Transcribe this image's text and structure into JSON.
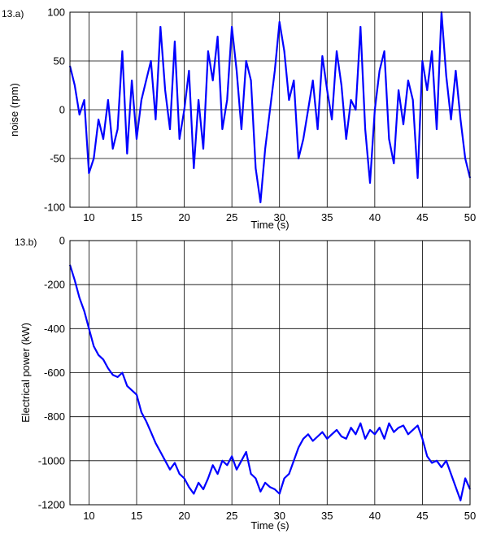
{
  "figure": {
    "background": "#ffffff",
    "line_color": "#0000ff",
    "axis_color": "#000000"
  },
  "chart_data": [
    {
      "type": "line",
      "panel_label": "13.a)",
      "xlabel": "Time (s)",
      "ylabel": "noise (rpm)",
      "xlim": [
        8,
        50
      ],
      "ylim": [
        -100,
        100
      ],
      "xticks": [
        10,
        15,
        20,
        25,
        30,
        35,
        40,
        45,
        50
      ],
      "yticks": [
        -100,
        -50,
        0,
        50,
        100
      ],
      "grid": true,
      "series": [
        {
          "color": "#0000ff",
          "x": [
            8,
            8.5,
            9,
            9.5,
            10,
            10.5,
            11,
            11.5,
            12,
            12.5,
            13,
            13.5,
            14,
            14.5,
            15,
            15.5,
            16,
            16.5,
            17,
            17.5,
            18,
            18.5,
            19,
            19.5,
            20,
            20.5,
            21,
            21.5,
            22,
            22.5,
            23,
            23.5,
            24,
            24.5,
            25,
            25.5,
            26,
            26.5,
            27,
            27.5,
            28,
            28.5,
            29,
            29.5,
            30,
            30.5,
            31,
            31.5,
            32,
            32.5,
            33,
            33.5,
            34,
            34.5,
            35,
            35.5,
            36,
            36.5,
            37,
            37.5,
            38,
            38.5,
            39,
            39.5,
            40,
            40.5,
            41,
            41.5,
            42,
            42.5,
            43,
            43.5,
            44,
            44.5,
            45,
            45.5,
            46,
            46.5,
            47,
            47.5,
            48,
            48.5,
            49,
            49.5,
            50
          ],
          "y": [
            45,
            25,
            -5,
            10,
            -65,
            -50,
            -10,
            -30,
            10,
            -40,
            -20,
            60,
            -45,
            30,
            -30,
            10,
            30,
            50,
            -10,
            85,
            20,
            -20,
            70,
            -30,
            0,
            40,
            -60,
            10,
            -40,
            60,
            30,
            75,
            -20,
            10,
            85,
            40,
            -20,
            50,
            30,
            -60,
            -95,
            -40,
            0,
            40,
            90,
            60,
            10,
            30,
            -50,
            -30,
            0,
            30,
            -20,
            55,
            20,
            -10,
            60,
            25,
            -30,
            10,
            0,
            85,
            -20,
            -75,
            0,
            40,
            60,
            -30,
            -55,
            20,
            -15,
            30,
            10,
            -70,
            50,
            20,
            60,
            -20,
            100,
            35,
            -10,
            40,
            -10,
            -50,
            -70
          ]
        }
      ]
    },
    {
      "type": "line",
      "panel_label": "13.b)",
      "xlabel": "Time (s)",
      "ylabel": "Electrical power (kW)",
      "xlim": [
        8,
        50
      ],
      "ylim": [
        -1200,
        0
      ],
      "xticks": [
        10,
        15,
        20,
        25,
        30,
        35,
        40,
        45,
        50
      ],
      "yticks": [
        -1200,
        -1000,
        -800,
        -600,
        -400,
        -200,
        0
      ],
      "grid": true,
      "series": [
        {
          "color": "#0000ff",
          "x": [
            8,
            8.5,
            9,
            9.5,
            10,
            10.5,
            11,
            11.5,
            12,
            12.5,
            13,
            13.5,
            14,
            14.5,
            15,
            15.5,
            16,
            16.5,
            17,
            17.5,
            18,
            18.5,
            19,
            19.5,
            20,
            20.5,
            21,
            21.5,
            22,
            22.5,
            23,
            23.5,
            24,
            24.5,
            25,
            25.5,
            26,
            26.5,
            27,
            27.5,
            28,
            28.5,
            29,
            29.5,
            30,
            30.5,
            31,
            31.5,
            32,
            32.5,
            33,
            33.5,
            34,
            34.5,
            35,
            35.5,
            36,
            36.5,
            37,
            37.5,
            38,
            38.5,
            39,
            39.5,
            40,
            40.5,
            41,
            41.5,
            42,
            42.5,
            43,
            43.5,
            44,
            44.5,
            45,
            45.5,
            46,
            46.5,
            47,
            47.5,
            48,
            48.5,
            49,
            49.5,
            50
          ],
          "y": [
            -110,
            -180,
            -260,
            -320,
            -400,
            -480,
            -520,
            -540,
            -580,
            -610,
            -620,
            -600,
            -660,
            -680,
            -700,
            -780,
            -820,
            -870,
            -920,
            -960,
            -1000,
            -1040,
            -1010,
            -1060,
            -1080,
            -1120,
            -1150,
            -1100,
            -1130,
            -1080,
            -1020,
            -1060,
            -1000,
            -1020,
            -980,
            -1040,
            -1000,
            -960,
            -1060,
            -1080,
            -1140,
            -1100,
            -1120,
            -1130,
            -1150,
            -1080,
            -1060,
            -1000,
            -940,
            -900,
            -880,
            -910,
            -890,
            -870,
            -900,
            -880,
            -860,
            -890,
            -900,
            -850,
            -880,
            -830,
            -900,
            -860,
            -880,
            -850,
            -900,
            -830,
            -870,
            -850,
            -840,
            -880,
            -860,
            -840,
            -900,
            -980,
            -1010,
            -1000,
            -1030,
            -1000,
            -1060,
            -1120,
            -1180,
            -1080,
            -1130
          ]
        }
      ]
    }
  ]
}
